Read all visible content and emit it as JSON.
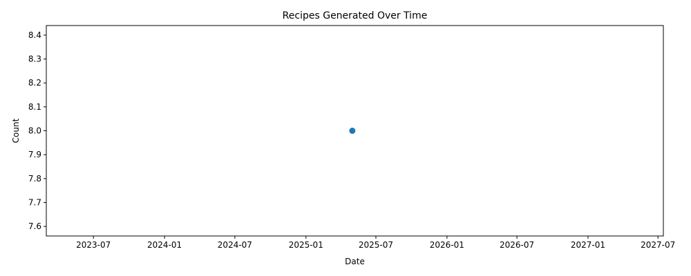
{
  "chart_data": {
    "type": "scatter",
    "title": "Recipes Generated Over Time",
    "xlabel": "Date",
    "ylabel": "Count",
    "x_ticks": [
      "2023-07",
      "2024-01",
      "2024-07",
      "2025-01",
      "2025-07",
      "2026-01",
      "2026-07",
      "2027-01",
      "2027-07"
    ],
    "y_ticks": [
      "7.6",
      "7.7",
      "7.8",
      "7.9",
      "8.0",
      "8.1",
      "8.2",
      "8.3",
      "8.4"
    ],
    "xlim": [
      "2023-03-01",
      "2027-07-15"
    ],
    "ylim": [
      7.56,
      8.44
    ],
    "grid": false,
    "series": [
      {
        "color": "#1f77b4",
        "points": [
          {
            "x": "2025-05-01",
            "y": 8.0
          }
        ]
      }
    ]
  }
}
